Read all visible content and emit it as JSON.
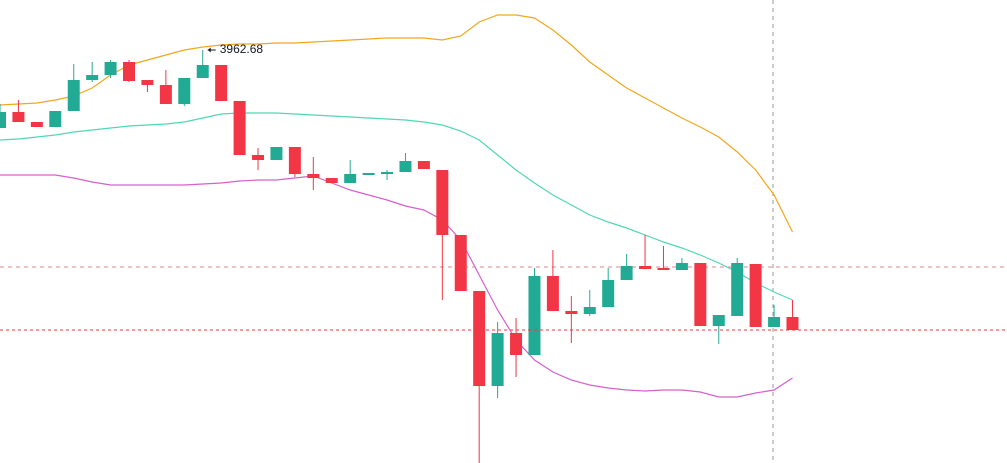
{
  "chart_data": {
    "type": "candlestick",
    "categories": [
      null,
      null,
      null,
      null,
      null,
      null,
      null,
      null,
      null,
      null,
      null,
      null,
      null,
      null,
      null,
      null,
      null,
      null,
      null,
      null,
      null,
      null,
      null,
      null,
      null,
      null,
      null,
      null,
      null,
      null,
      null,
      null,
      null,
      null,
      null,
      null,
      null,
      null,
      null,
      null,
      null,
      null,
      null,
      null
    ],
    "open": [
      3923.68,
      3931.68,
      3926.68,
      3924.18,
      3932.18,
      3947.68,
      3950.18,
      3956.68,
      3947.68,
      3945.18,
      3935.68,
      3948.68,
      3955.18,
      3937.18,
      3910.18,
      3907.68,
      3914.18,
      3900.68,
      3898.68,
      3896.18,
      3900.18,
      3900.68,
      3901.68,
      3907.18,
      3902.68,
      3870.18,
      3842.18,
      3794.68,
      3821.18,
      3810.18,
      3849.68,
      3832.18,
      3830.68,
      3834.18,
      3847.68,
      3854.68,
      3853.68,
      3852.68,
      3856.18,
      3824.68,
      3829.68,
      3855.68,
      3824.18,
      3829.18
    ],
    "high": [
      3935.68,
      3937.68,
      3926.68,
      3932.18,
      3955.68,
      3956.68,
      3957.68,
      3957.68,
      3947.68,
      3952.68,
      3948.68,
      3962.68,
      3955.18,
      3937.18,
      3913.68,
      3914.18,
      3914.18,
      3909.18,
      3898.68,
      3907.68,
      3901.18,
      3902.68,
      3911.18,
      3907.18,
      3902.68,
      3870.18,
      3842.18,
      3826.68,
      3828.68,
      3853.68,
      3862.68,
      3839.68,
      3842.68,
      3853.68,
      3860.68,
      3870.18,
      3864.68,
      3858.68,
      3856.18,
      3830.18,
      3858.68,
      3855.68,
      3835.18,
      3837.68
    ],
    "low": [
      3923.68,
      3926.68,
      3924.18,
      3924.18,
      3932.18,
      3946.68,
      3948.68,
      3946.68,
      3941.68,
      3935.68,
      3934.68,
      3948.68,
      3937.18,
      3910.18,
      3902.68,
      3907.68,
      3899.18,
      3892.68,
      3896.18,
      3896.18,
      3900.18,
      3897.68,
      3901.68,
      3903.18,
      3837.68,
      3842.18,
      3756.18,
      3788.68,
      3799.18,
      3810.18,
      3832.18,
      3816.18,
      3829.68,
      3834.18,
      3847.68,
      3853.18,
      3852.68,
      3852.68,
      3824.68,
      3815.68,
      3829.68,
      3824.18,
      3824.18,
      3822.68
    ],
    "close": [
      3931.68,
      3926.68,
      3924.18,
      3932.18,
      3947.68,
      3950.18,
      3956.68,
      3947.18,
      3945.18,
      3935.68,
      3948.68,
      3955.18,
      3937.18,
      3910.18,
      3907.68,
      3914.18,
      3900.68,
      3898.68,
      3896.18,
      3900.68,
      3901.18,
      3901.68,
      3907.18,
      3903.18,
      3870.18,
      3842.18,
      3794.68,
      3821.18,
      3810.18,
      3849.68,
      3832.18,
      3830.68,
      3834.18,
      3847.68,
      3854.68,
      3853.18,
      3852.68,
      3856.18,
      3824.68,
      3830.18,
      3856.18,
      3824.18,
      3829.18,
      3822.68
    ],
    "up_color": "#22ab94",
    "down_color": "#f23645",
    "bands": [
      {
        "color": "#f0a81c",
        "values": [
          3935.18,
          3935.68,
          3936.18,
          3937.68,
          3939.68,
          3943.68,
          3950.18,
          3955.18,
          3957.68,
          3960.18,
          3962.68,
          3964.18,
          3965.18,
          3965.68,
          3965.68,
          3966.18,
          3966.18,
          3966.68,
          3967.18,
          3967.68,
          3968.18,
          3968.68,
          3968.68,
          3968.68,
          3967.68,
          3969.68,
          3976.68,
          3980.18,
          3980.18,
          3978.68,
          3972.68,
          3965.18,
          3956.68,
          3950.18,
          3943.68,
          3938.68,
          3933.68,
          3928.68,
          3924.18,
          3919.18,
          3911.68,
          3902.68,
          3890.18,
          3871.68
        ]
      },
      {
        "color": "#4fd8b4",
        "values": [
          3917.68,
          3918.18,
          3919.18,
          3920.18,
          3921.68,
          3922.68,
          3923.68,
          3924.68,
          3925.18,
          3925.68,
          3926.68,
          3928.68,
          3930.68,
          3931.18,
          3931.18,
          3931.18,
          3930.68,
          3930.18,
          3929.68,
          3929.18,
          3928.68,
          3928.18,
          3927.68,
          3926.68,
          3925.18,
          3922.18,
          3917.68,
          3910.18,
          3902.68,
          3896.18,
          3890.18,
          3885.18,
          3880.18,
          3876.68,
          3873.68,
          3870.18,
          3866.68,
          3863.68,
          3860.18,
          3856.18,
          3851.68,
          3846.18,
          3841.68,
          3837.68
        ]
      },
      {
        "color": "#d660cc",
        "values": [
          3900.18,
          3900.18,
          3900.18,
          3900.18,
          3898.68,
          3896.68,
          3895.18,
          3895.18,
          3895.18,
          3895.18,
          3895.18,
          3895.68,
          3896.18,
          3897.18,
          3897.68,
          3897.68,
          3898.68,
          3899.68,
          3896.18,
          3892.68,
          3890.18,
          3887.68,
          3884.68,
          3882.68,
          3877.68,
          3867.68,
          3850.18,
          3832.68,
          3817.68,
          3807.68,
          3801.68,
          3797.68,
          3795.18,
          3793.68,
          3792.68,
          3792.18,
          3792.68,
          3792.68,
          3791.68,
          3789.18,
          3789.18,
          3791.18,
          3792.68,
          3798.68
        ]
      }
    ],
    "annotation": {
      "value": 3962.68,
      "label": "3962.68"
    },
    "crosshair_price": 3854.18,
    "ylim": [
      3756.18,
      3987.68
    ]
  }
}
